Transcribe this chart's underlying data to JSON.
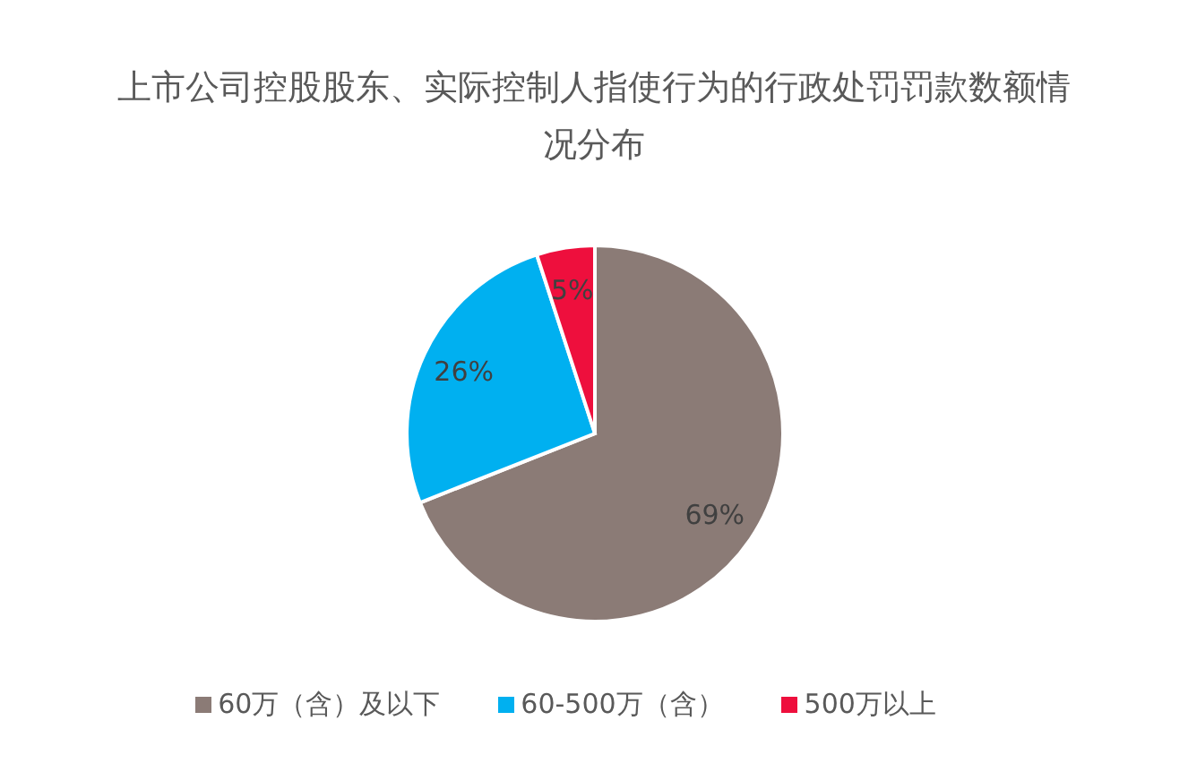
{
  "chart_data": {
    "type": "pie",
    "title": "上市公司控股股东、实际控制人指使行为的行政处罚罚款数额情况分布",
    "categories": [
      "60万（含）及以下",
      "60-500万（含）",
      "500万以上"
    ],
    "values": [
      69,
      26,
      5
    ],
    "colors": [
      "#8b7b76",
      "#00b0f0",
      "#ee0f3d"
    ],
    "value_labels": [
      "69%",
      "26%",
      "5%"
    ],
    "legend": "bottom"
  }
}
